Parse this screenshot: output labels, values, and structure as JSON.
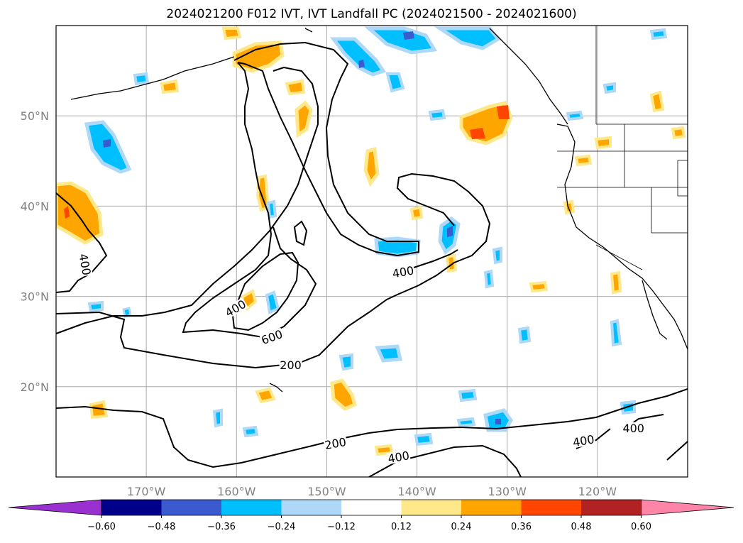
{
  "title": "2024021200 F012 IVT, IVT Landfall PC (2024021500 - 2024021600)",
  "map": {
    "lon_range": [
      -180,
      -110
    ],
    "lat_range": [
      10,
      60
    ],
    "lat_ticks": [
      {
        "lat": 20,
        "label": "20°N"
      },
      {
        "lat": 30,
        "label": "30°N"
      },
      {
        "lat": 40,
        "label": "40°N"
      },
      {
        "lat": 50,
        "label": "50°N"
      }
    ],
    "lon_ticks": [
      {
        "lon": -170,
        "label": "170°W"
      },
      {
        "lon": -160,
        "label": "160°W"
      },
      {
        "lon": -150,
        "label": "150°W"
      },
      {
        "lon": -140,
        "label": "140°W"
      },
      {
        "lon": -130,
        "label": "130°W"
      },
      {
        "lon": -120,
        "label": "120°W"
      }
    ],
    "contour_labels": [
      {
        "text": "400",
        "lon": -177,
        "lat": 33.5,
        "rot": 80
      },
      {
        "text": "400",
        "lon": -160,
        "lat": 28.5,
        "rot": -30
      },
      {
        "text": "600",
        "lon": -156,
        "lat": 25.3,
        "rot": -20
      },
      {
        "text": "200",
        "lon": -154,
        "lat": 22.2,
        "rot": 0
      },
      {
        "text": "400",
        "lon": -141.5,
        "lat": 32.5,
        "rot": -10
      },
      {
        "text": "200",
        "lon": -149,
        "lat": 13.5,
        "rot": -10
      },
      {
        "text": "400",
        "lon": -142,
        "lat": 12.0,
        "rot": -10
      },
      {
        "text": "400",
        "lon": -121.5,
        "lat": 13.8,
        "rot": -10
      },
      {
        "text": "400",
        "lon": -116,
        "lat": 15.2,
        "rot": 0
      }
    ]
  },
  "colorbar": {
    "labels": [
      "−0.60",
      "−0.48",
      "−0.36",
      "−0.24",
      "−0.12",
      "0.12",
      "0.24",
      "0.36",
      "0.48",
      "0.60"
    ],
    "colors": [
      "#9b30d0",
      "#00008b",
      "#3a5bd0",
      "#00bfff",
      "#add8f7",
      "#ffffff",
      "#ffe88a",
      "#ffa500",
      "#ff4500",
      "#b22222",
      "#ff85a8"
    ]
  }
}
